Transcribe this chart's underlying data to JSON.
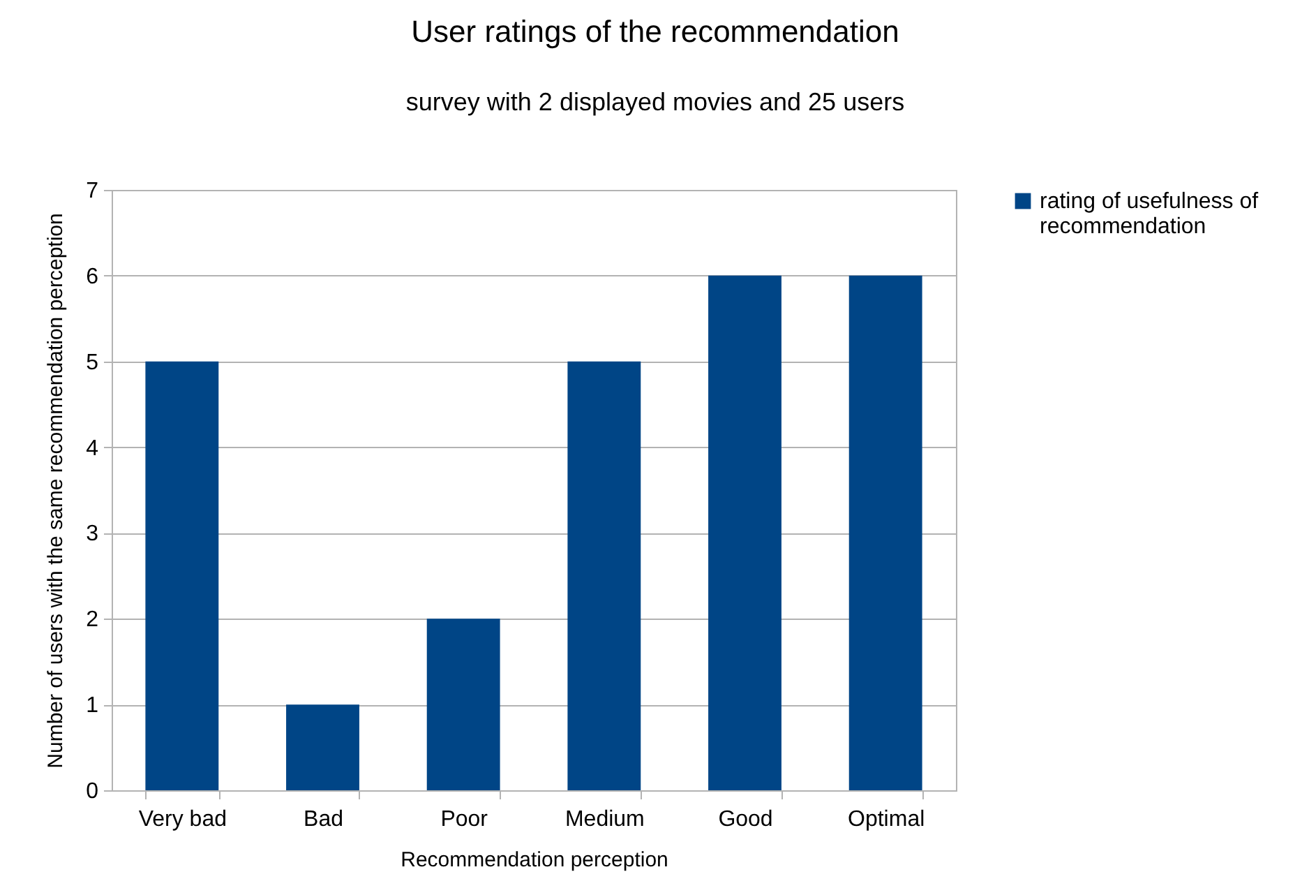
{
  "chart_data": {
    "type": "bar",
    "title": "User ratings of the recommendation",
    "subtitle": "survey with 2 displayed movies and 25 users",
    "xlabel": "Recommendation perception",
    "ylabel": "Number of users with the same recommendation perception",
    "categories": [
      "Very bad",
      "Bad",
      "Poor",
      "Medium",
      "Good",
      "Optimal"
    ],
    "series": [
      {
        "name": "rating of usefulness of recommendation",
        "color": "#004586",
        "values": [
          5,
          1,
          2,
          5,
          6,
          6
        ]
      }
    ],
    "ylim": [
      0,
      7
    ],
    "yticks": [
      0,
      1,
      2,
      3,
      4,
      5,
      6,
      7
    ],
    "grid": "y",
    "legend": "right"
  }
}
